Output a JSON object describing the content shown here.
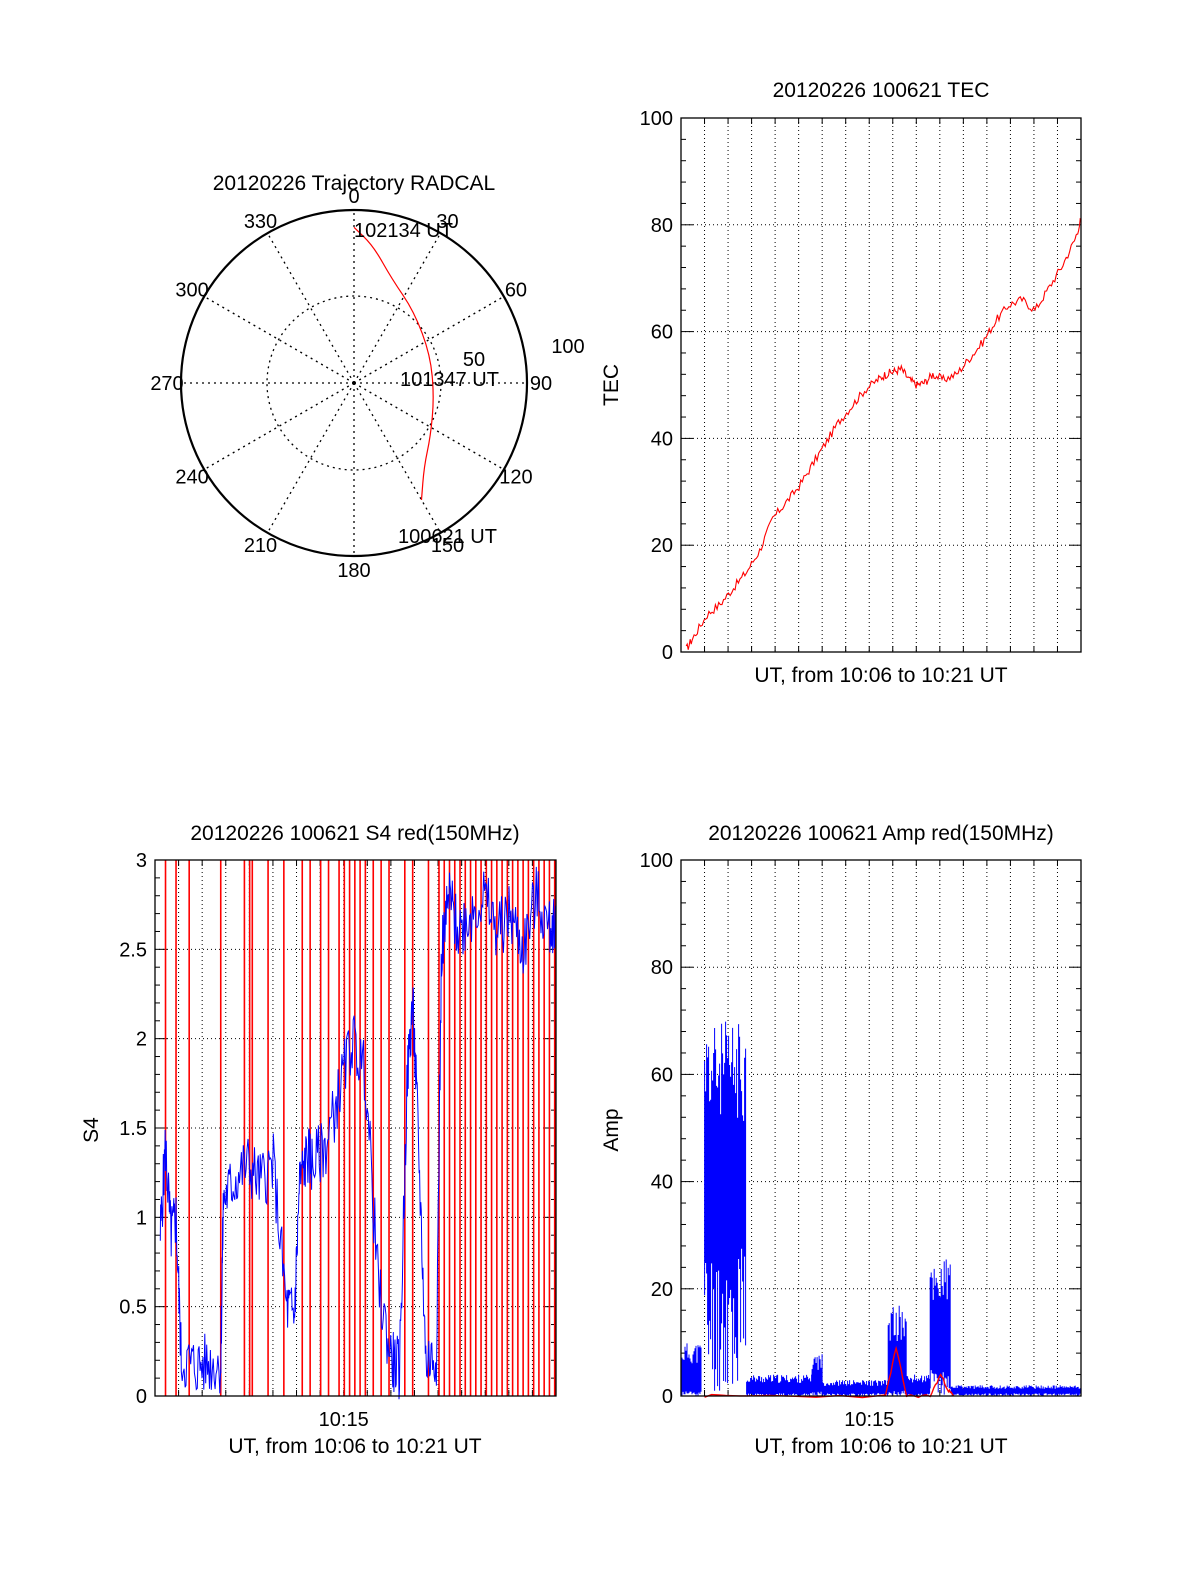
{
  "chart_data": [
    {
      "type": "polar",
      "title": "20120226 Trajectory RADCAL",
      "angle_labels": [
        "0",
        "30",
        "60",
        "90",
        "120",
        "150",
        "180",
        "210",
        "240",
        "270",
        "300",
        "330"
      ],
      "radial_labels": [
        "50",
        "100"
      ],
      "rmax": 100,
      "grid": true,
      "series": [
        {
          "color": "#ff0000",
          "points": [
            {
              "az": 0,
              "zen": 90
            },
            {
              "az": 8,
              "zen": 80
            },
            {
              "az": 20,
              "zen": 64
            },
            {
              "az": 40,
              "zen": 54
            },
            {
              "az": 70,
              "zen": 47
            },
            {
              "az": 100,
              "zen": 47
            },
            {
              "az": 125,
              "zen": 54
            },
            {
              "az": 140,
              "zen": 63
            },
            {
              "az": 150,
              "zen": 78
            }
          ]
        }
      ],
      "annotations": [
        "102134 UT",
        "101347 UT",
        "100621 UT"
      ]
    },
    {
      "type": "line",
      "title": "20120226 100621 TEC",
      "xlabel": "UT, from 10:06 to 10:21 UT",
      "ylabel": "TEC",
      "xlim": [
        0,
        15.25
      ],
      "ylim": [
        0,
        100
      ],
      "yticks": [
        "0",
        "20",
        "40",
        "60",
        "80",
        "100"
      ],
      "xticks": [],
      "grid": true,
      "series": [
        {
          "color": "#ff0000",
          "x": [
            0.2,
            0.5,
            1.0,
            1.5,
            2.0,
            2.5,
            3.0,
            3.5,
            4.0,
            4.5,
            5.0,
            5.5,
            6.0,
            6.5,
            7.0,
            7.5,
            7.8,
            8.1,
            8.4,
            8.7,
            9.0,
            9.3,
            9.6,
            10.0,
            10.5,
            11.0,
            11.5,
            12.0,
            12.5,
            13.0,
            13.5,
            14.0,
            14.5,
            15.0,
            15.25
          ],
          "y": [
            0.5,
            3,
            7,
            9,
            12,
            15,
            19,
            25,
            28,
            31,
            35,
            39,
            43,
            46,
            49,
            51,
            52,
            52.5,
            53,
            51,
            50,
            50.5,
            52,
            51,
            52,
            55,
            58,
            62,
            65,
            66,
            64,
            68,
            72,
            77,
            81
          ]
        }
      ]
    },
    {
      "type": "line",
      "title": "20120226 100621 S4 red(150MHz)",
      "xlabel": "UT, from 10:06 to 10:21 UT",
      "ylabel": "S4",
      "xlim": [
        0,
        15.25
      ],
      "ylim": [
        0,
        3
      ],
      "yticks": [
        "0",
        "0.5",
        "1",
        "1.5",
        "2",
        "2.5",
        "3"
      ],
      "xticks": [
        "10:15"
      ],
      "grid": true,
      "series": [
        {
          "color": "#0000ff",
          "x": [
            0.2,
            0.4,
            0.6,
            0.8,
            1.0,
            1.5,
            2.0,
            2.5,
            2.6,
            3.0,
            3.5,
            4.0,
            4.5,
            5.0,
            5.3,
            5.5,
            5.8,
            6.0,
            6.5,
            7.0,
            7.5,
            8.0,
            8.5,
            9.0,
            9.3,
            9.6,
            9.8,
            10.0,
            10.3,
            10.7,
            10.9,
            11.2,
            11.5,
            12.0,
            12.5,
            13.0,
            13.5,
            14.0,
            14.5,
            15.0,
            15.25
          ],
          "y": [
            0.9,
            1.4,
            0.9,
            1.0,
            0.2,
            0.17,
            0.18,
            0.18,
            1.1,
            1.2,
            1.3,
            1.2,
            1.3,
            0.5,
            0.45,
            1.2,
            1.35,
            1.3,
            1.4,
            1.7,
            2.0,
            1.8,
            0.6,
            0.2,
            0.15,
            1.8,
            2.2,
            1.5,
            0.2,
            0.22,
            2.5,
            2.8,
            2.6,
            2.7,
            2.8,
            2.6,
            2.7,
            2.5,
            2.8,
            2.6,
            2.7
          ]
        },
        {
          "color": "#ff0000",
          "spikes_x": [
            0.4,
            0.8,
            1.3,
            2.5,
            3.4,
            3.6,
            3.7,
            4.3,
            4.9,
            5.6,
            5.9,
            6.3,
            6.6,
            7.0,
            7.2,
            7.4,
            7.6,
            7.8,
            8.0,
            8.3,
            8.6,
            8.9,
            9.5,
            9.8,
            10.4,
            10.8,
            11.0,
            11.2,
            11.4,
            11.6,
            11.8,
            12.0,
            12.2,
            12.4,
            12.6,
            12.8,
            13.0,
            13.2,
            13.4,
            13.6,
            13.8,
            14.0,
            14.2,
            14.4,
            14.6,
            14.8,
            15.0,
            15.2
          ],
          "spikes_top": 3
        }
      ]
    },
    {
      "type": "line",
      "title": "20120226 100621 Amp red(150MHz)",
      "xlabel": "UT, from 10:06 to 10:21 UT",
      "ylabel": "Amp",
      "xlim": [
        0,
        15.25
      ],
      "ylim": [
        0,
        100
      ],
      "yticks": [
        "0",
        "20",
        "40",
        "60",
        "80",
        "100"
      ],
      "xticks": [
        "10:15"
      ],
      "grid": true,
      "series": [
        {
          "color": "#0000ff",
          "bands": [
            {
              "x0": 0.0,
              "x1": 0.8,
              "low": 1,
              "high": 10
            },
            {
              "x0": 0.9,
              "x1": 2.5,
              "low": 28,
              "high": 70
            },
            {
              "x0": 2.5,
              "x1": 5.0,
              "low": 0.5,
              "high": 4
            },
            {
              "x0": 5.0,
              "x1": 5.4,
              "low": 1,
              "high": 8
            },
            {
              "x0": 5.4,
              "x1": 7.9,
              "low": 0.5,
              "high": 3
            },
            {
              "x0": 7.9,
              "x1": 8.6,
              "low": 1,
              "high": 17
            },
            {
              "x0": 8.6,
              "x1": 9.5,
              "low": 0.5,
              "high": 4
            },
            {
              "x0": 9.5,
              "x1": 10.3,
              "low": 5,
              "high": 26
            },
            {
              "x0": 10.3,
              "x1": 15.25,
              "low": 0.5,
              "high": 2
            }
          ]
        },
        {
          "color": "#ff0000",
          "x": [
            0.9,
            2.5,
            7.8,
            8.2,
            8.6,
            9.5,
            9.9,
            10.2,
            10.4
          ],
          "y": [
            0,
            0,
            0,
            9,
            0,
            0,
            4,
            1,
            0
          ]
        }
      ]
    }
  ]
}
